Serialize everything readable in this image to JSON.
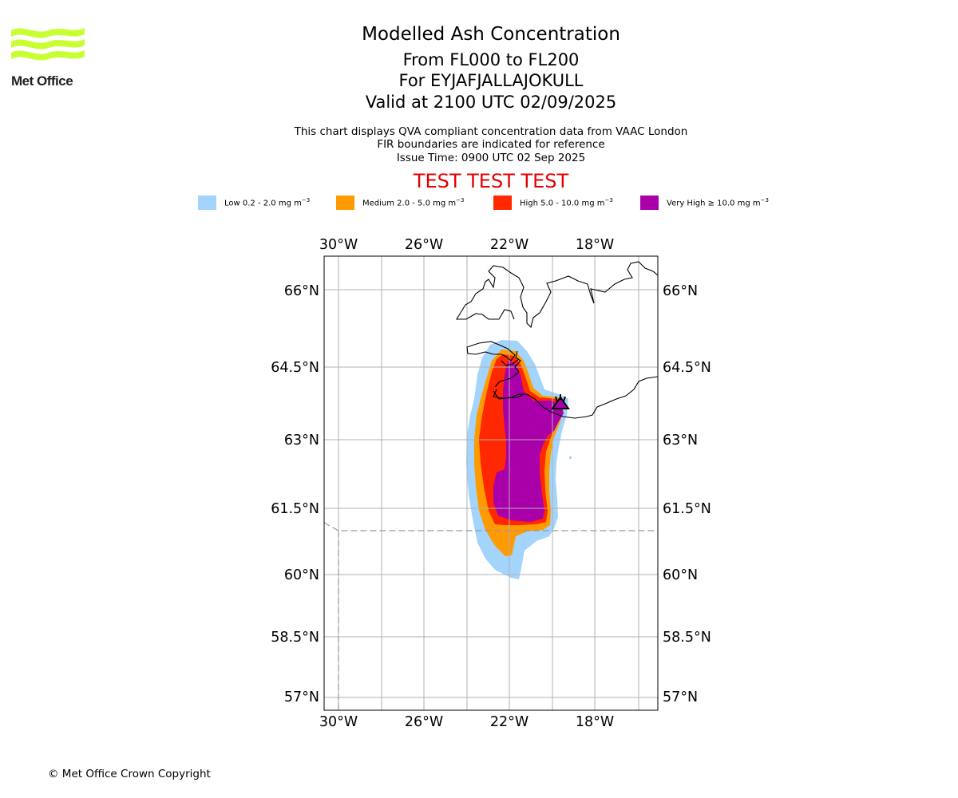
{
  "logo": {
    "text": "Met Office",
    "brand_color": "#c8ff32"
  },
  "header": {
    "title": "Modelled Ash Concentration",
    "range": "From FL000 to FL200",
    "volcano": "For EYJAFJALLAJOKULL",
    "valid": "Valid at 2100 UTC 02/09/2025",
    "desc1": "This chart displays QVA compliant concentration data from VAAC London",
    "desc2": "FIR boundaries are indicated for reference",
    "issue": "Issue Time: 0900 UTC 02 Sep 2025",
    "test_banner": "TEST TEST TEST"
  },
  "legend": [
    {
      "label": "Low 0.2 - 2.0 mg m",
      "exp": "−3",
      "color": "#a3d4fb"
    },
    {
      "label": "Medium 2.0 - 5.0 mg m",
      "exp": "−3",
      "color": "#ff9a00"
    },
    {
      "label": "High 5.0 - 10.0 mg m",
      "exp": "−3",
      "color": "#ff2800"
    },
    {
      "label": "Very High  ≥  10.0 mg m",
      "exp": "−3",
      "color": "#aa00aa"
    }
  ],
  "map": {
    "lon_ticks": [
      "30°W",
      "26°W",
      "22°W",
      "18°W"
    ],
    "lat_ticks": [
      "66°N",
      "64.5°N",
      "63°N",
      "61.5°N",
      "60°N",
      "58.5°N",
      "57°N"
    ],
    "volcano_icon": "volcano-icon"
  },
  "footer": {
    "copyright": "© Met Office Crown Copyright"
  }
}
